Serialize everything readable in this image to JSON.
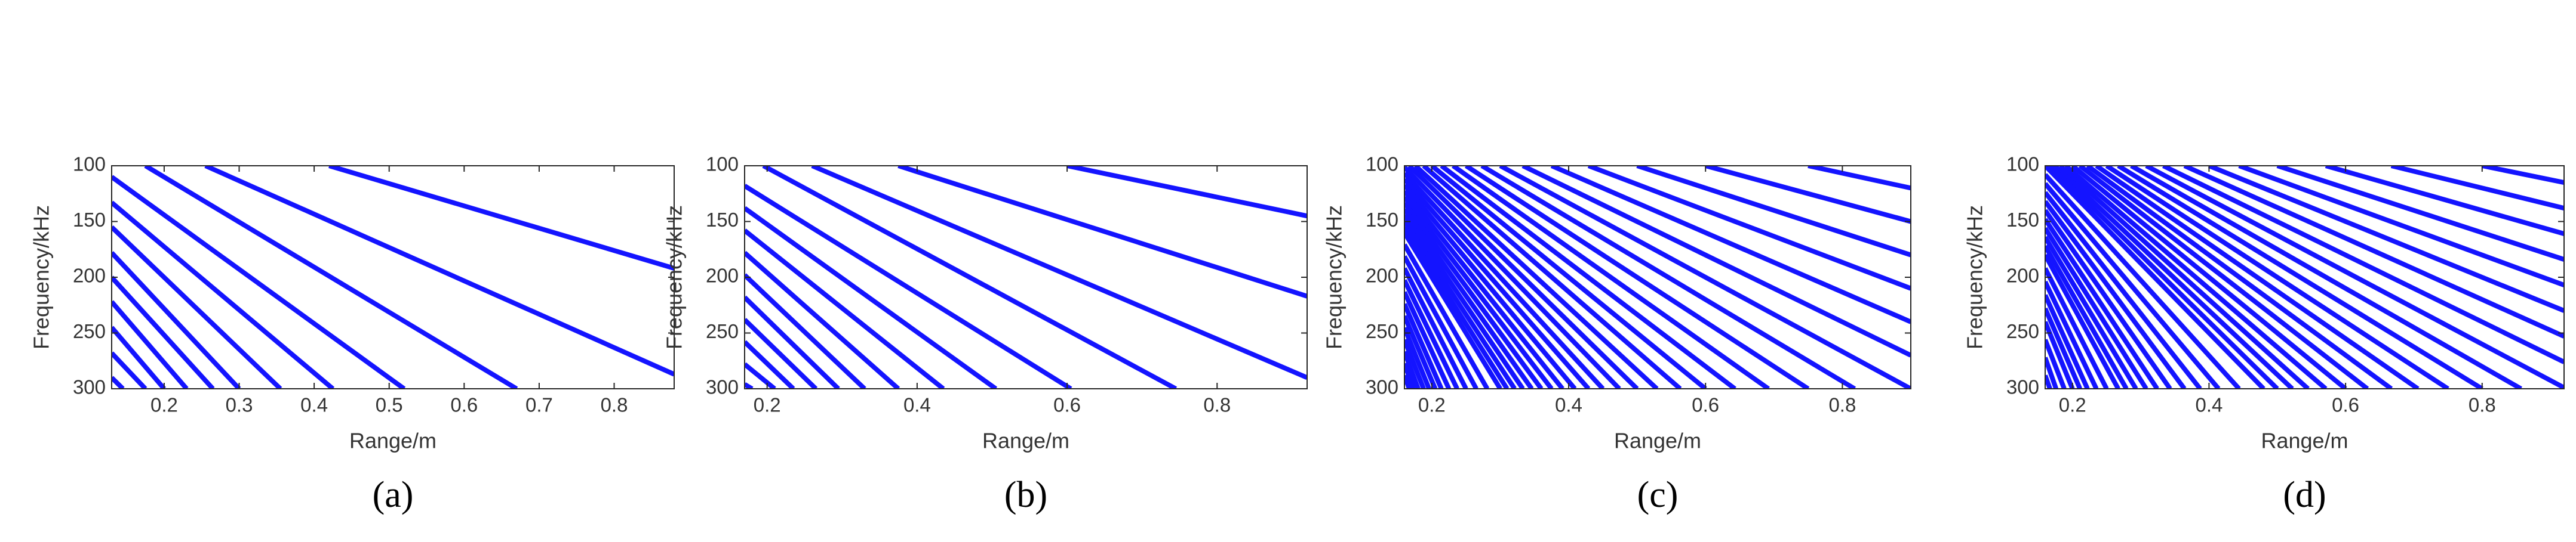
{
  "chart_data": [
    {
      "type": "line",
      "subplot_label": "(a)",
      "xlabel": "Range/m",
      "ylabel": "Frequency/kHz",
      "color": "#1414ff",
      "xlim": [
        0.13,
        0.88
      ],
      "xticks": [
        0.2,
        0.3,
        0.4,
        0.5,
        0.6,
        0.7,
        0.8
      ],
      "ylim": [
        100,
        300
      ],
      "y_inverted": true,
      "yticks": [
        100,
        150,
        200,
        250,
        300
      ],
      "series": [
        {
          "x": [
            0.42,
            0.88
          ],
          "values": [
            100,
            192
          ]
        },
        {
          "x": [
            0.255,
            0.88
          ],
          "values": [
            100,
            287
          ]
        },
        {
          "x": [
            0.175,
            0.67
          ],
          "values": [
            100,
            300
          ]
        },
        {
          "x": [
            0.13,
            0.52
          ],
          "values": [
            110,
            300
          ]
        },
        {
          "x": [
            0.13,
            0.425
          ],
          "values": [
            133,
            300
          ]
        },
        {
          "x": [
            0.13,
            0.355
          ],
          "values": [
            155,
            300
          ]
        },
        {
          "x": [
            0.13,
            0.3
          ],
          "values": [
            178,
            300
          ]
        },
        {
          "x": [
            0.13,
            0.265
          ],
          "values": [
            200,
            300
          ]
        },
        {
          "x": [
            0.13,
            0.23
          ],
          "values": [
            222,
            300
          ]
        },
        {
          "x": [
            0.13,
            0.2
          ],
          "values": [
            245,
            300
          ]
        },
        {
          "x": [
            0.13,
            0.175
          ],
          "values": [
            268,
            300
          ]
        },
        {
          "x": [
            0.13,
            0.145
          ],
          "values": [
            290,
            300
          ]
        }
      ]
    },
    {
      "type": "line",
      "subplot_label": "(b)",
      "xlabel": "Range/m",
      "ylabel": "Frequency/kHz",
      "color": "#1414ff",
      "xlim": [
        0.17,
        0.92
      ],
      "xticks": [
        0.2,
        0.4,
        0.6,
        0.8
      ],
      "ylim": [
        100,
        300
      ],
      "y_inverted": true,
      "yticks": [
        100,
        150,
        200,
        250,
        300
      ],
      "series": [
        {
          "x": [
            0.6,
            0.92
          ],
          "values": [
            100,
            145
          ]
        },
        {
          "x": [
            0.375,
            0.92
          ],
          "values": [
            100,
            217
          ]
        },
        {
          "x": [
            0.26,
            0.92
          ],
          "values": [
            100,
            290
          ]
        },
        {
          "x": [
            0.195,
            0.745
          ],
          "values": [
            100,
            300
          ]
        },
        {
          "x": [
            0.17,
            0.605
          ],
          "values": [
            118,
            300
          ]
        },
        {
          "x": [
            0.17,
            0.505
          ],
          "values": [
            138,
            300
          ]
        },
        {
          "x": [
            0.17,
            0.435
          ],
          "values": [
            158,
            300
          ]
        },
        {
          "x": [
            0.17,
            0.375
          ],
          "values": [
            178,
            300
          ]
        },
        {
          "x": [
            0.17,
            0.33
          ],
          "values": [
            198,
            300
          ]
        },
        {
          "x": [
            0.17,
            0.295
          ],
          "values": [
            218,
            300
          ]
        },
        {
          "x": [
            0.17,
            0.265
          ],
          "values": [
            238,
            300
          ]
        },
        {
          "x": [
            0.17,
            0.235
          ],
          "values": [
            258,
            300
          ]
        },
        {
          "x": [
            0.17,
            0.21
          ],
          "values": [
            278,
            300
          ]
        },
        {
          "x": [
            0.17,
            0.18
          ],
          "values": [
            296,
            300
          ]
        }
      ]
    },
    {
      "type": "line",
      "subplot_label": "(c)",
      "xlabel": "Range/m",
      "ylabel": "Frequency/kHz",
      "color": "#1414ff",
      "xlim": [
        0.16,
        0.9
      ],
      "xticks": [
        0.2,
        0.4,
        0.6,
        0.8
      ],
      "ylim": [
        100,
        300
      ],
      "y_inverted": true,
      "yticks": [
        100,
        150,
        200,
        250,
        300
      ],
      "series": [
        {
          "x": [
            0.75,
            0.9
          ],
          "values": [
            100,
            120
          ]
        },
        {
          "x": [
            0.6,
            0.9
          ],
          "values": [
            100,
            150
          ]
        },
        {
          "x": [
            0.5,
            0.9
          ],
          "values": [
            100,
            180
          ]
        },
        {
          "x": [
            0.429,
            0.9
          ],
          "values": [
            100,
            210
          ]
        },
        {
          "x": [
            0.375,
            0.9
          ],
          "values": [
            100,
            240
          ]
        },
        {
          "x": [
            0.333,
            0.9
          ],
          "values": [
            100,
            270
          ]
        },
        {
          "x": [
            0.3,
            0.9
          ],
          "values": [
            100,
            300
          ]
        },
        {
          "x": [
            0.273,
            0.818
          ],
          "values": [
            100,
            300
          ]
        },
        {
          "x": [
            0.25,
            0.75
          ],
          "values": [
            100,
            300
          ]
        },
        {
          "x": [
            0.231,
            0.692
          ],
          "values": [
            100,
            300
          ]
        },
        {
          "x": [
            0.214,
            0.643
          ],
          "values": [
            100,
            300
          ]
        },
        {
          "x": [
            0.2,
            0.6
          ],
          "values": [
            100,
            300
          ]
        },
        {
          "x": [
            0.188,
            0.563
          ],
          "values": [
            100,
            300
          ]
        },
        {
          "x": [
            0.176,
            0.529
          ],
          "values": [
            100,
            300
          ]
        },
        {
          "x": [
            0.167,
            0.5
          ],
          "values": [
            100,
            300
          ]
        },
        {
          "x": [
            0.16,
            0.474
          ],
          "values": [
            101.3,
            300
          ]
        },
        {
          "x": [
            0.16,
            0.45
          ],
          "values": [
            106.7,
            300
          ]
        },
        {
          "x": [
            0.16,
            0.429
          ],
          "values": [
            112,
            300
          ]
        },
        {
          "x": [
            0.16,
            0.409
          ],
          "values": [
            117.3,
            300
          ]
        },
        {
          "x": [
            0.16,
            0.391
          ],
          "values": [
            122.7,
            300
          ]
        },
        {
          "x": [
            0.16,
            0.375
          ],
          "values": [
            128,
            300
          ]
        },
        {
          "x": [
            0.16,
            0.36
          ],
          "values": [
            133.3,
            300
          ]
        },
        {
          "x": [
            0.16,
            0.346
          ],
          "values": [
            138.7,
            300
          ]
        },
        {
          "x": [
            0.16,
            0.333
          ],
          "values": [
            144,
            300
          ]
        },
        {
          "x": [
            0.16,
            0.321
          ],
          "values": [
            149.3,
            300
          ]
        },
        {
          "x": [
            0.16,
            0.31
          ],
          "values": [
            154.7,
            300
          ]
        },
        {
          "x": [
            0.16,
            0.3
          ],
          "values": [
            160,
            300
          ]
        },
        {
          "x": [
            0.16,
            0.281
          ],
          "values": [
            170.7,
            300
          ]
        },
        {
          "x": [
            0.16,
            0.265
          ],
          "values": [
            181.3,
            300
          ]
        },
        {
          "x": [
            0.16,
            0.25
          ],
          "values": [
            192,
            300
          ]
        },
        {
          "x": [
            0.16,
            0.237
          ],
          "values": [
            202.7,
            300
          ]
        },
        {
          "x": [
            0.16,
            0.225
          ],
          "values": [
            213.3,
            300
          ]
        },
        {
          "x": [
            0.16,
            0.214
          ],
          "values": [
            224,
            300
          ]
        },
        {
          "x": [
            0.16,
            0.205
          ],
          "values": [
            234.7,
            300
          ]
        },
        {
          "x": [
            0.16,
            0.196
          ],
          "values": [
            245.3,
            300
          ]
        },
        {
          "x": [
            0.16,
            0.188
          ],
          "values": [
            256,
            300
          ]
        },
        {
          "x": [
            0.16,
            0.18
          ],
          "values": [
            266.7,
            300
          ]
        },
        {
          "x": [
            0.16,
            0.173
          ],
          "values": [
            277.3,
            300
          ]
        },
        {
          "x": [
            0.16,
            0.167
          ],
          "values": [
            288,
            300
          ]
        }
      ]
    },
    {
      "type": "line",
      "subplot_label": "(d)",
      "xlabel": "Range/m",
      "ylabel": "Frequency/kHz",
      "color": "#1414ff",
      "xlim": [
        0.16,
        0.92
      ],
      "xticks": [
        0.2,
        0.4,
        0.6,
        0.8
      ],
      "ylim": [
        100,
        300
      ],
      "y_inverted": true,
      "yticks": [
        100,
        150,
        200,
        250,
        300
      ],
      "series": [
        {
          "x": [
            0.8,
            0.92
          ],
          "values": [
            100,
            115
          ]
        },
        {
          "x": [
            0.667,
            0.92
          ],
          "values": [
            100,
            138
          ]
        },
        {
          "x": [
            0.571,
            0.92
          ],
          "values": [
            100,
            161
          ]
        },
        {
          "x": [
            0.5,
            0.92
          ],
          "values": [
            100,
            184
          ]
        },
        {
          "x": [
            0.444,
            0.92
          ],
          "values": [
            100,
            207
          ]
        },
        {
          "x": [
            0.4,
            0.92
          ],
          "values": [
            100,
            230
          ]
        },
        {
          "x": [
            0.364,
            0.92
          ],
          "values": [
            100,
            253
          ]
        },
        {
          "x": [
            0.333,
            0.92
          ],
          "values": [
            100,
            276
          ]
        },
        {
          "x": [
            0.308,
            0.92
          ],
          "values": [
            100,
            299
          ]
        },
        {
          "x": [
            0.286,
            0.857
          ],
          "values": [
            100,
            300
          ]
        },
        {
          "x": [
            0.267,
            0.8
          ],
          "values": [
            100,
            300
          ]
        },
        {
          "x": [
            0.25,
            0.75
          ],
          "values": [
            100,
            300
          ]
        },
        {
          "x": [
            0.235,
            0.706
          ],
          "values": [
            100,
            300
          ]
        },
        {
          "x": [
            0.222,
            0.667
          ],
          "values": [
            100,
            300
          ]
        },
        {
          "x": [
            0.211,
            0.632
          ],
          "values": [
            100,
            300
          ]
        },
        {
          "x": [
            0.2,
            0.6
          ],
          "values": [
            100,
            300
          ]
        },
        {
          "x": [
            0.19,
            0.571
          ],
          "values": [
            100,
            300
          ]
        },
        {
          "x": [
            0.182,
            0.545
          ],
          "values": [
            100,
            300
          ]
        },
        {
          "x": [
            0.174,
            0.522
          ],
          "values": [
            100,
            300
          ]
        },
        {
          "x": [
            0.167,
            0.5
          ],
          "values": [
            100,
            300
          ]
        },
        {
          "x": [
            0.16,
            0.48
          ],
          "values": [
            100,
            300
          ]
        },
        {
          "x": [
            0.16,
            0.444
          ],
          "values": [
            108,
            300
          ]
        },
        {
          "x": [
            0.16,
            0.414
          ],
          "values": [
            116,
            300
          ]
        },
        {
          "x": [
            0.16,
            0.387
          ],
          "values": [
            124,
            300
          ]
        },
        {
          "x": [
            0.16,
            0.364
          ],
          "values": [
            132,
            300
          ]
        },
        {
          "x": [
            0.16,
            0.343
          ],
          "values": [
            140,
            300
          ]
        },
        {
          "x": [
            0.16,
            0.324
          ],
          "values": [
            148,
            300
          ]
        },
        {
          "x": [
            0.16,
            0.308
          ],
          "values": [
            156,
            300
          ]
        },
        {
          "x": [
            0.16,
            0.293
          ],
          "values": [
            164,
            300
          ]
        },
        {
          "x": [
            0.16,
            0.279
          ],
          "values": [
            172,
            300
          ]
        },
        {
          "x": [
            0.16,
            0.267
          ],
          "values": [
            180,
            300
          ]
        },
        {
          "x": [
            0.16,
            0.25
          ],
          "values": [
            192,
            300
          ]
        },
        {
          "x": [
            0.16,
            0.235
          ],
          "values": [
            204,
            300
          ]
        },
        {
          "x": [
            0.16,
            0.222
          ],
          "values": [
            216,
            300
          ]
        },
        {
          "x": [
            0.16,
            0.211
          ],
          "values": [
            228,
            300
          ]
        },
        {
          "x": [
            0.16,
            0.2
          ],
          "values": [
            240,
            300
          ]
        },
        {
          "x": [
            0.16,
            0.188
          ],
          "values": [
            256,
            300
          ]
        },
        {
          "x": [
            0.16,
            0.176
          ],
          "values": [
            272,
            300
          ]
        },
        {
          "x": [
            0.16,
            0.167
          ],
          "values": [
            288,
            300
          ]
        }
      ]
    }
  ]
}
